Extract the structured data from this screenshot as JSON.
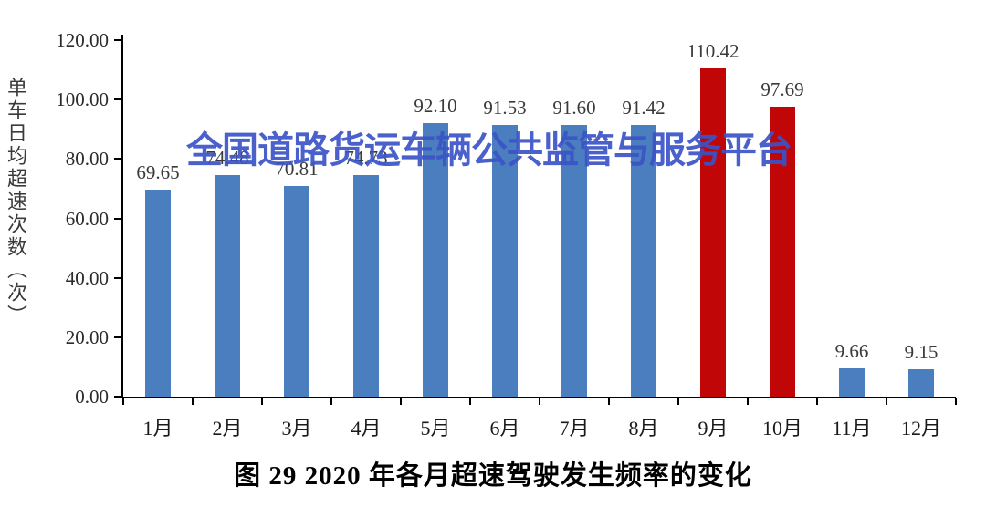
{
  "figure": {
    "caption": "图 29 2020 年各月超速驾驶发生频率的变化",
    "watermark": "全国道路货运车辆公共监管与服务平台"
  },
  "chart_data": {
    "type": "bar",
    "title": "图 29 2020 年各月超速驾驶发生频率的变化",
    "xlabel": "",
    "ylabel": "单车日均超速次数（次）",
    "ylim": [
      0,
      120
    ],
    "ytick_step": 20,
    "ytick_labels": [
      "120.00",
      "100.00",
      "80.00",
      "60.00",
      "40.00",
      "20.00",
      "0.00"
    ],
    "categories": [
      "1月",
      "2月",
      "3月",
      "4月",
      "5月",
      "6月",
      "7月",
      "8月",
      "9月",
      "10月",
      "11月",
      "12月"
    ],
    "values": [
      69.65,
      74.48,
      70.81,
      74.73,
      92.1,
      91.53,
      91.6,
      91.42,
      110.42,
      97.69,
      9.66,
      9.15
    ],
    "value_labels": [
      "69.65",
      "74.48",
      "70.81",
      "74.73",
      "92.10",
      "91.53",
      "91.60",
      "91.42",
      "110.42",
      "97.69",
      "9.66",
      "9.15"
    ],
    "bar_color_keys": [
      "blue",
      "blue",
      "blue",
      "blue",
      "blue",
      "blue",
      "blue",
      "blue",
      "red",
      "red",
      "blue",
      "blue"
    ],
    "colors": {
      "blue": "#4A7EBE",
      "red": "#C00606",
      "watermark_blue": "#3B53C7",
      "axis": "#000000",
      "label_text": "#3A3A3A"
    },
    "grid": false,
    "legend": null
  }
}
